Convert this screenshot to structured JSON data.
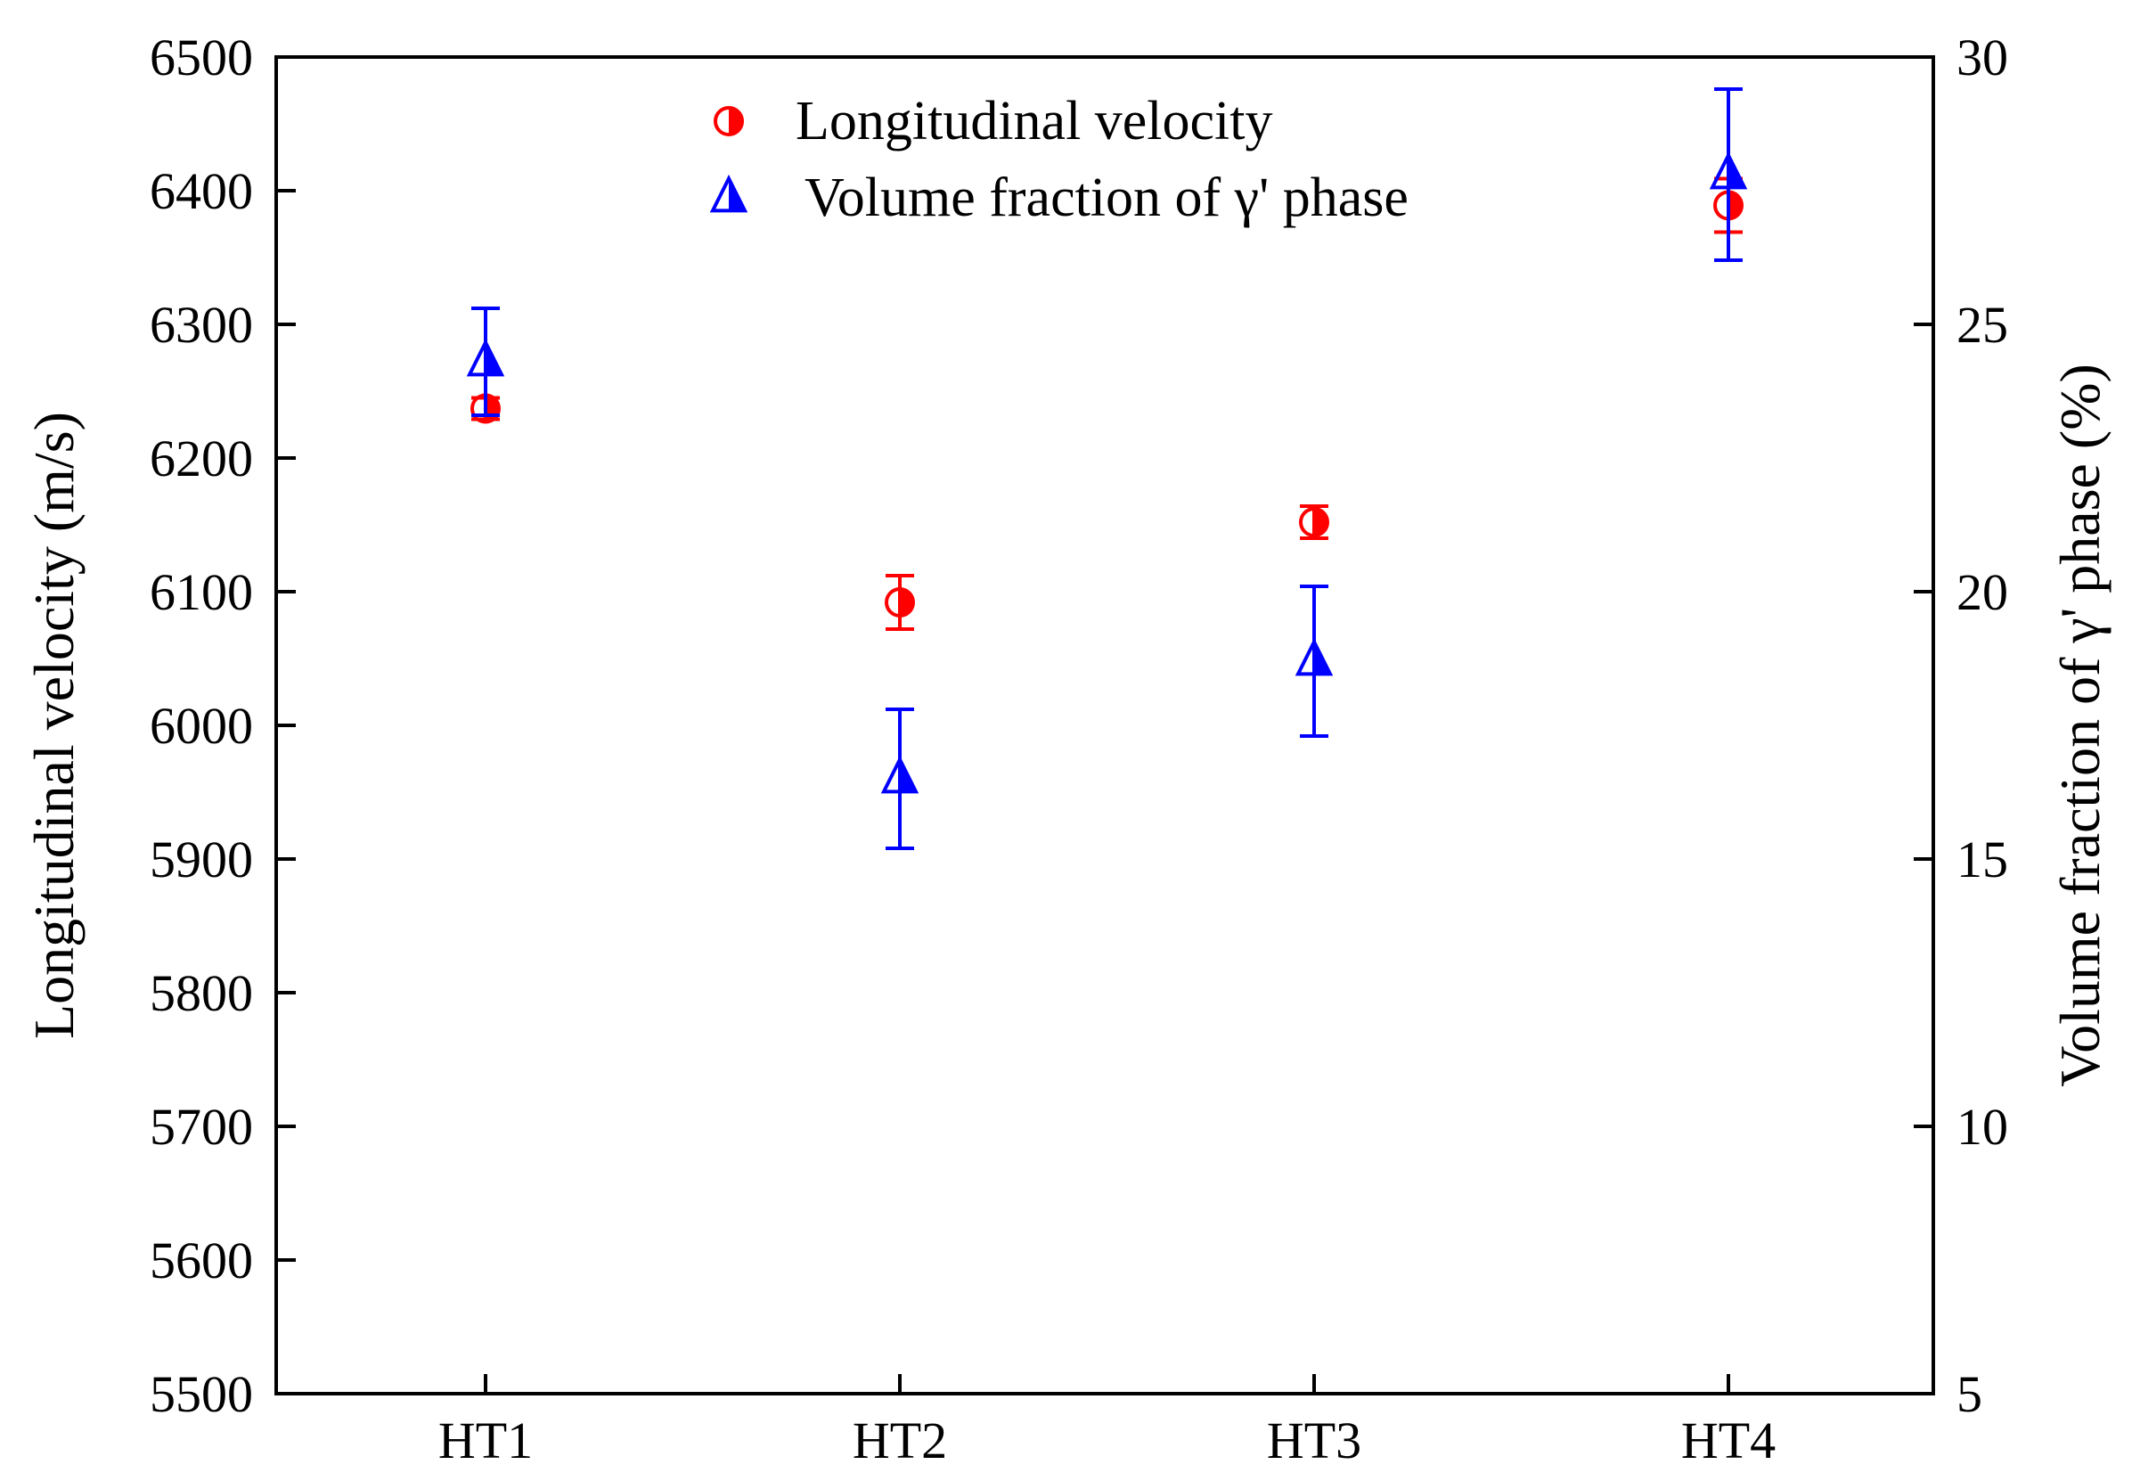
{
  "chart_data": {
    "type": "scatter",
    "title": "",
    "categories": [
      "HT1",
      "HT2",
      "HT3",
      "HT4"
    ],
    "y_left": {
      "label": "Longitudinal velocity (m/s)",
      "range": [
        5500,
        6500
      ],
      "ticks": [
        5500,
        5600,
        5700,
        5800,
        5900,
        6000,
        6100,
        6200,
        6300,
        6400,
        6500
      ]
    },
    "y_right": {
      "label": "Volume fraction of γ' phase (%)",
      "range": [
        5,
        30
      ],
      "ticks": [
        5,
        10,
        15,
        20,
        25,
        30
      ]
    },
    "series": [
      {
        "name": "Longitudinal velocity",
        "axis": "left",
        "marker": "half-filled-circle",
        "color": "#ff0000",
        "values": [
          6237,
          6092,
          6152,
          6389
        ],
        "error": [
          8,
          20,
          12,
          20
        ]
      },
      {
        "name": "Volume fraction of γ' phase",
        "axis": "right",
        "marker": "half-filled-triangle",
        "color": "#0000ff",
        "values": [
          24.3,
          16.5,
          18.7,
          27.8
        ],
        "error": [
          1.0,
          1.3,
          1.4,
          1.6
        ]
      }
    ],
    "grid": false,
    "legend_position": "top-center"
  }
}
